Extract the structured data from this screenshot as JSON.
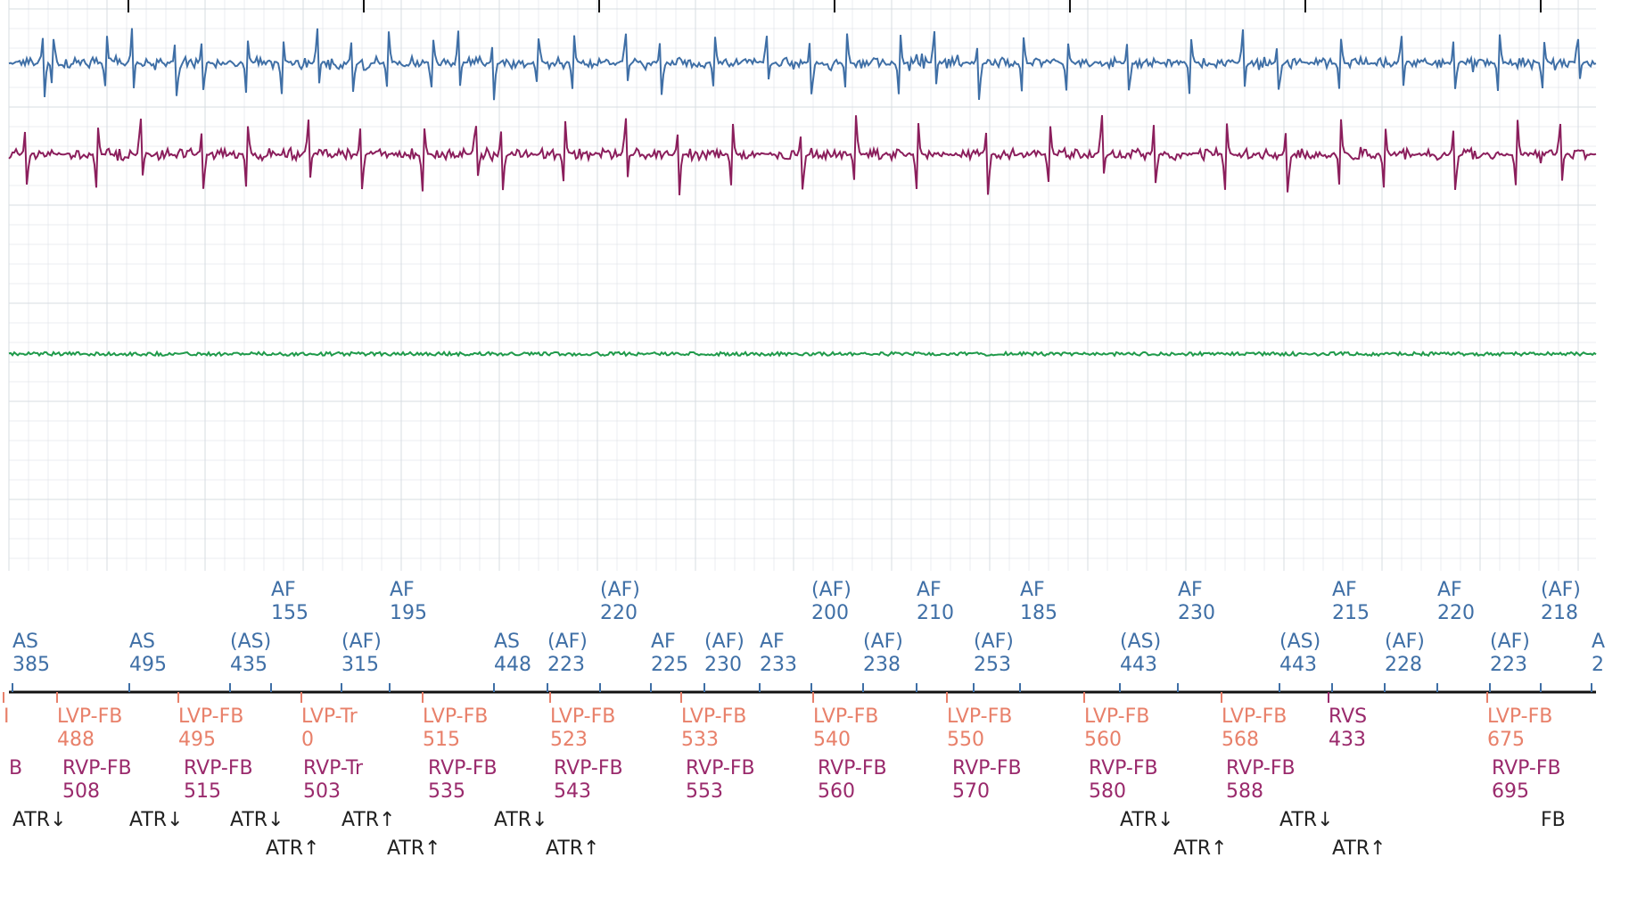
{
  "chart_data": {
    "type": "line",
    "grid": true,
    "colors": {
      "atrial": "#3f6fa6",
      "rv": "#8b1e5c",
      "shock": "#1f9a4a",
      "lv_marker": "#e8806a",
      "rv_marker": "#9a2a6c",
      "atr_marker": "#222222",
      "grid": "#d7dce2",
      "axis": "#111111"
    },
    "series": [
      {
        "type": "egm",
        "color": "atrial",
        "baseline": 0.11,
        "amp": 0.06,
        "beats": [
          0.04,
          0.05,
          0.11,
          0.14,
          0.19,
          0.22,
          0.27,
          0.31,
          0.35,
          0.39,
          0.43,
          0.48,
          0.51,
          0.55,
          0.6,
          0.64,
          0.7,
          0.74,
          0.8,
          0.86,
          0.91,
          0.95,
          1.01,
          1.05,
          1.1,
          1.15,
          1.2,
          1.27,
          1.34,
          1.4,
          1.44,
          1.51,
          1.58,
          1.64,
          1.69,
          1.74,
          1.78
        ]
      },
      {
        "type": "egm",
        "color": "rv",
        "baseline": 0.27,
        "amp": 0.07,
        "beats": [
          0.02,
          0.1,
          0.15,
          0.22,
          0.27,
          0.34,
          0.4,
          0.47,
          0.53,
          0.56,
          0.63,
          0.7,
          0.76,
          0.82,
          0.9,
          0.96,
          1.03,
          1.11,
          1.18,
          1.24,
          1.3,
          1.38,
          1.45,
          1.51,
          1.56,
          1.64,
          1.71,
          1.76
        ]
      },
      {
        "type": "flat",
        "color": "shock",
        "baseline": 0.62,
        "amp": 0.005
      }
    ],
    "atrial_rows": [
      [
        {
          "code": "AF",
          "val": "155"
        },
        {
          "code": "AF",
          "val": "195"
        },
        {
          "code": "(AF)",
          "val": "220"
        },
        {
          "code": "(AF)",
          "val": "200"
        },
        {
          "code": "AF",
          "val": "210"
        },
        {
          "code": "AF",
          "val": "185"
        },
        {
          "code": "AF",
          "val": "230"
        },
        {
          "code": "AF",
          "val": "215"
        },
        {
          "code": "AF",
          "val": "220"
        },
        {
          "code": "(AF)",
          "val": "218"
        }
      ],
      [
        {
          "code": "AS",
          "val": "385"
        },
        {
          "code": "AS",
          "val": "495"
        },
        {
          "code": "(AS)",
          "val": "435"
        },
        {
          "code": "(AF)",
          "val": "315"
        },
        {
          "code": "AS",
          "val": "448"
        },
        {
          "code": "(AF)",
          "val": "223"
        },
        {
          "code": "AF",
          "val": "225"
        },
        {
          "code": "(AF)",
          "val": "230"
        },
        {
          "code": "AF",
          "val": "233"
        },
        {
          "code": "(AF)",
          "val": "238"
        },
        {
          "code": "(AF)",
          "val": "253"
        },
        {
          "code": "(AS)",
          "val": "443"
        },
        {
          "code": "(AS)",
          "val": "443"
        },
        {
          "code": "(AF)",
          "val": "228"
        },
        {
          "code": "(AF)",
          "val": "223"
        },
        {
          "code": "A",
          "val": "2"
        }
      ]
    ],
    "ventricular_rows": [
      [
        {
          "code": "I",
          "val": ""
        },
        {
          "code": "LVP-FB",
          "val": "488"
        },
        {
          "code": "LVP-FB",
          "val": "495"
        },
        {
          "code": "LVP-Tr",
          "val": "0"
        },
        {
          "code": "LVP-FB",
          "val": "515"
        },
        {
          "code": "LVP-FB",
          "val": "523"
        },
        {
          "code": "LVP-FB",
          "val": "533"
        },
        {
          "code": "LVP-FB",
          "val": "540"
        },
        {
          "code": "LVP-FB",
          "val": "550"
        },
        {
          "code": "LVP-FB",
          "val": "560"
        },
        {
          "code": "LVP-FB",
          "val": "568"
        },
        {
          "code": "RVS",
          "val": "433"
        },
        {
          "code": "LVP-FB",
          "val": "675"
        }
      ],
      [
        {
          "code": "B",
          "val": ""
        },
        {
          "code": "RVP-FB",
          "val": "508"
        },
        {
          "code": "RVP-FB",
          "val": "515"
        },
        {
          "code": "RVP-Tr",
          "val": "503"
        },
        {
          "code": "RVP-FB",
          "val": "535"
        },
        {
          "code": "RVP-FB",
          "val": "543"
        },
        {
          "code": "RVP-FB",
          "val": "553"
        },
        {
          "code": "RVP-FB",
          "val": "560"
        },
        {
          "code": "RVP-FB",
          "val": "570"
        },
        {
          "code": "RVP-FB",
          "val": "580"
        },
        {
          "code": "RVP-FB",
          "val": "588"
        },
        {
          "code": "RVP-FB",
          "val": "695"
        }
      ]
    ],
    "atr_rows": [
      [
        "ATR↓",
        "ATR↓",
        "ATR↓",
        "ATR↑",
        "ATR↓",
        "ATR↓",
        "ATR↓",
        "FB"
      ],
      [
        "ATR↑",
        "ATR↑",
        "ATR↑",
        "ATR↑",
        "ATR↑"
      ]
    ]
  }
}
